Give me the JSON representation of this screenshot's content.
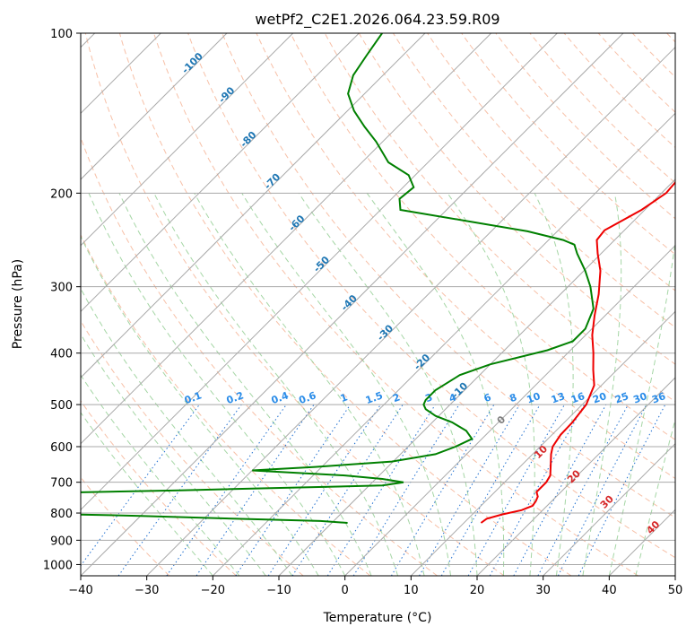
{
  "chart_data": {
    "type": "line",
    "title": "wetPf2_C2E1.2026.064.23.59.R09",
    "xlabel": "Temperature (°C)",
    "ylabel": "Pressure (hPa)",
    "xlim": [
      -40,
      50
    ],
    "ylim": [
      1050,
      100
    ],
    "y_scale": "log",
    "grid": true,
    "x_ticks": [
      -40,
      -30,
      -20,
      -10,
      0,
      10,
      20,
      30,
      40,
      50
    ],
    "y_ticks": [
      1000,
      900,
      800,
      700,
      600,
      500,
      400,
      300,
      200,
      100
    ],
    "colors": {
      "temperature": "#ee0000",
      "dewpoint": "#008000",
      "isotherm": "#a9a9a9",
      "dry_adiabat": "#f4a582",
      "moist_adiabat": "#8fcc8f",
      "mixing_ratio": "#1f6fd0",
      "isotherm_label": "#1f77b4",
      "moist_label": "#d62728",
      "zero_label": "#808080"
    },
    "series": [
      {
        "type": "temperature",
        "pressure": [
          835,
          820,
          805,
          790,
          775,
          760,
          745,
          730,
          700,
          680,
          650,
          620,
          600,
          570,
          540,
          500,
          460,
          430,
          400,
          370,
          340,
          310,
          280,
          260,
          245,
          235,
          215,
          200,
          185,
          175,
          160,
          145,
          135,
          125,
          117,
          110,
          105,
          100
        ],
        "temp": [
          12.6,
          12.8,
          14.5,
          16.8,
          17.8,
          17.6,
          17.2,
          16.3,
          16.3,
          15.9,
          14.4,
          12.8,
          11.9,
          11.3,
          11.2,
          10.6,
          8.9,
          6.4,
          3.9,
          1.0,
          -1.6,
          -4.2,
          -7.5,
          -10.5,
          -12.7,
          -13.0,
          -10.5,
          -9.3,
          -9.7,
          -11.2,
          -14.0,
          -18.0,
          -20.5,
          -22.0,
          -23.5,
          -25.5,
          -28.0,
          -30.5
        ]
      },
      {
        "type": "dewpoint",
        "pressure": [
          835,
          828,
          820,
          810,
          800,
          780,
          750,
          725,
          710,
          700,
          690,
          680,
          665,
          655,
          640,
          620,
          600,
          580,
          560,
          540,
          525,
          510,
          500,
          490,
          470,
          440,
          420,
          395,
          380,
          360,
          330,
          300,
          280,
          260,
          250,
          245,
          236,
          225,
          215,
          205,
          195,
          185,
          175,
          160,
          150,
          140,
          130,
          120,
          110,
          100
        ],
        "temp": [
          -7.6,
          -12.0,
          -25.0,
          -40.0,
          -60.0,
          -90.0,
          -95.0,
          -38.0,
          -8.0,
          -5.3,
          -9.0,
          -15.0,
          -30.0,
          -21.0,
          -10.2,
          -4.7,
          -2.8,
          -1.5,
          -3.6,
          -7.0,
          -10.5,
          -13.0,
          -14.0,
          -14.4,
          -14.4,
          -13.0,
          -10.0,
          -3.5,
          -1.0,
          -1.0,
          -2.8,
          -6.6,
          -9.8,
          -13.6,
          -15.4,
          -17.8,
          -24.5,
          -36.0,
          -47.0,
          -48.8,
          -48.4,
          -51.0,
          -56.0,
          -61.0,
          -65.0,
          -69.0,
          -72.5,
          -74.5,
          -75.5,
          -76.5
        ]
      }
    ],
    "annotations": {
      "isotherm_labels": [
        "-100",
        "-90",
        "-80",
        "-70",
        "-60",
        "-50",
        "-40",
        "-30",
        "-20",
        "-10"
      ],
      "mixing_ratio_labels": [
        "0.1",
        "0.2",
        "0.4",
        "0.6",
        "1",
        "1.5",
        "2",
        "3",
        "4",
        "6",
        "8",
        "10",
        "13",
        "16",
        "20",
        "25",
        "30",
        "36"
      ],
      "moist_labels": [
        "0",
        "10",
        "20",
        "30",
        "40"
      ]
    }
  }
}
